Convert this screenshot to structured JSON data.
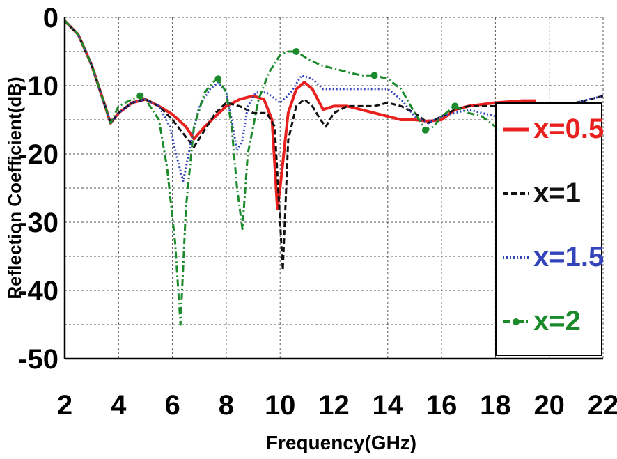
{
  "chart_data": {
    "type": "line",
    "title": "",
    "xlabel": "Frequency(GHz)",
    "ylabel": "Reflection Coefficient(dB)",
    "xlim": [
      2,
      22
    ],
    "ylim": [
      -50,
      0
    ],
    "xticks": [
      2,
      4,
      6,
      8,
      10,
      12,
      14,
      16,
      18,
      20,
      22
    ],
    "yticks": [
      0,
      -10,
      -20,
      -30,
      -40,
      -50
    ],
    "grid": true,
    "legend_position": "right",
    "series": [
      {
        "name": "x=0.5",
        "color": "#e8201e",
        "style": "solid",
        "x": [
          2,
          2.5,
          3,
          3.5,
          3.7,
          4,
          4.5,
          5,
          5.5,
          6,
          6.5,
          6.8,
          7.2,
          7.6,
          8,
          8.5,
          9,
          9.4,
          9.7,
          9.9,
          10,
          10.3,
          10.6,
          10.9,
          11.2,
          11.6,
          12,
          12.5,
          13,
          13.5,
          14,
          14.5,
          15,
          15.5,
          16,
          16.5,
          17,
          18,
          19,
          19.5
        ],
        "y": [
          -0.5,
          -2.5,
          -7,
          -13,
          -15.5,
          -14,
          -12.5,
          -12,
          -13,
          -14.2,
          -16,
          -17.8,
          -16,
          -14.5,
          -13,
          -12,
          -11.5,
          -12,
          -15,
          -28,
          -25,
          -14,
          -10.5,
          -9.5,
          -10.5,
          -13.5,
          -13,
          -13,
          -13.5,
          -14,
          -14.5,
          -15,
          -15,
          -15.2,
          -15,
          -13.5,
          -13,
          -12.5,
          -12.2,
          -12.2
        ]
      },
      {
        "name": "x=1",
        "color": "#111111",
        "style": "dashed",
        "x": [
          2,
          2.5,
          3,
          3.5,
          3.7,
          4,
          4.5,
          5,
          5.5,
          6,
          6.5,
          6.8,
          7.2,
          7.6,
          8,
          8.5,
          9,
          9.5,
          9.8,
          10,
          10.1,
          10.3,
          10.6,
          10.9,
          11.2,
          11.5,
          11.7,
          12,
          12.5,
          13,
          13.5,
          14,
          14.5,
          15,
          15.5,
          16,
          16.5,
          17,
          18,
          19,
          20,
          21,
          22
        ],
        "y": [
          -0.5,
          -2.5,
          -7,
          -13,
          -15.5,
          -14,
          -12.5,
          -12,
          -13,
          -15,
          -17.5,
          -19,
          -16.5,
          -14,
          -12.5,
          -13,
          -14,
          -14,
          -16,
          -30,
          -37,
          -18,
          -13,
          -12,
          -13,
          -15,
          -16,
          -14,
          -13,
          -13,
          -13,
          -12.5,
          -13,
          -14,
          -15.5,
          -14.5,
          -13.5,
          -13,
          -13,
          -12.5,
          -12.5,
          -12.5,
          -11.5
        ]
      },
      {
        "name": "x=1.5",
        "color": "#3344bb",
        "style": "dotted",
        "x": [
          2,
          2.5,
          3,
          3.5,
          3.7,
          4,
          4.5,
          5,
          5.5,
          5.9,
          6.2,
          6.4,
          6.7,
          7,
          7.4,
          7.7,
          8,
          8.2,
          8.4,
          8.6,
          8.8,
          9.1,
          9.5,
          10,
          10.4,
          10.8,
          11.2,
          11.6,
          12,
          12.5,
          13,
          14,
          14.5,
          15,
          15.5,
          16,
          16.5,
          17,
          18,
          19,
          20,
          21,
          22
        ],
        "y": [
          -0.5,
          -2.5,
          -7,
          -13,
          -15.5,
          -14,
          -12.5,
          -12,
          -13,
          -16,
          -21,
          -24,
          -18,
          -13,
          -10.5,
          -9.5,
          -11,
          -15,
          -19.5,
          -18,
          -13,
          -11,
          -11,
          -12.5,
          -11,
          -8.5,
          -9,
          -10.5,
          -10.5,
          -10.5,
          -10.5,
          -10.5,
          -12,
          -14.5,
          -15.5,
          -14.5,
          -14,
          -13.5,
          -14.5,
          -14,
          -13,
          -12.5,
          -11.5
        ]
      },
      {
        "name": "x=2",
        "color": "#1a8a2a",
        "style": "dash-dot",
        "x": [
          2,
          2.5,
          3,
          3.5,
          3.7,
          4,
          4.5,
          4.8,
          5,
          5.5,
          5.8,
          6.1,
          6.3,
          6.5,
          6.8,
          7.2,
          7.5,
          7.7,
          8,
          8.2,
          8.4,
          8.6,
          8.8,
          9.2,
          9.6,
          10,
          10.3,
          10.6,
          11,
          11.5,
          12,
          12.5,
          13,
          13.5,
          14,
          14.5,
          15,
          15.4,
          15.7,
          16,
          16.5,
          17,
          17.5,
          18,
          18.5
        ],
        "y": [
          -0.5,
          -2.5,
          -7,
          -13,
          -15.5,
          -13,
          -12,
          -11.5,
          -12,
          -15,
          -22,
          -33,
          -45,
          -28,
          -16,
          -11,
          -9.5,
          -9,
          -11,
          -16,
          -25,
          -31,
          -20,
          -12,
          -8,
          -5.5,
          -5,
          -5,
          -6,
          -7,
          -7.5,
          -8,
          -8.5,
          -8.5,
          -9,
          -10.5,
          -14,
          -16.5,
          -16,
          -14.5,
          -13,
          -14,
          -14.5,
          -16,
          -17
        ]
      }
    ]
  }
}
